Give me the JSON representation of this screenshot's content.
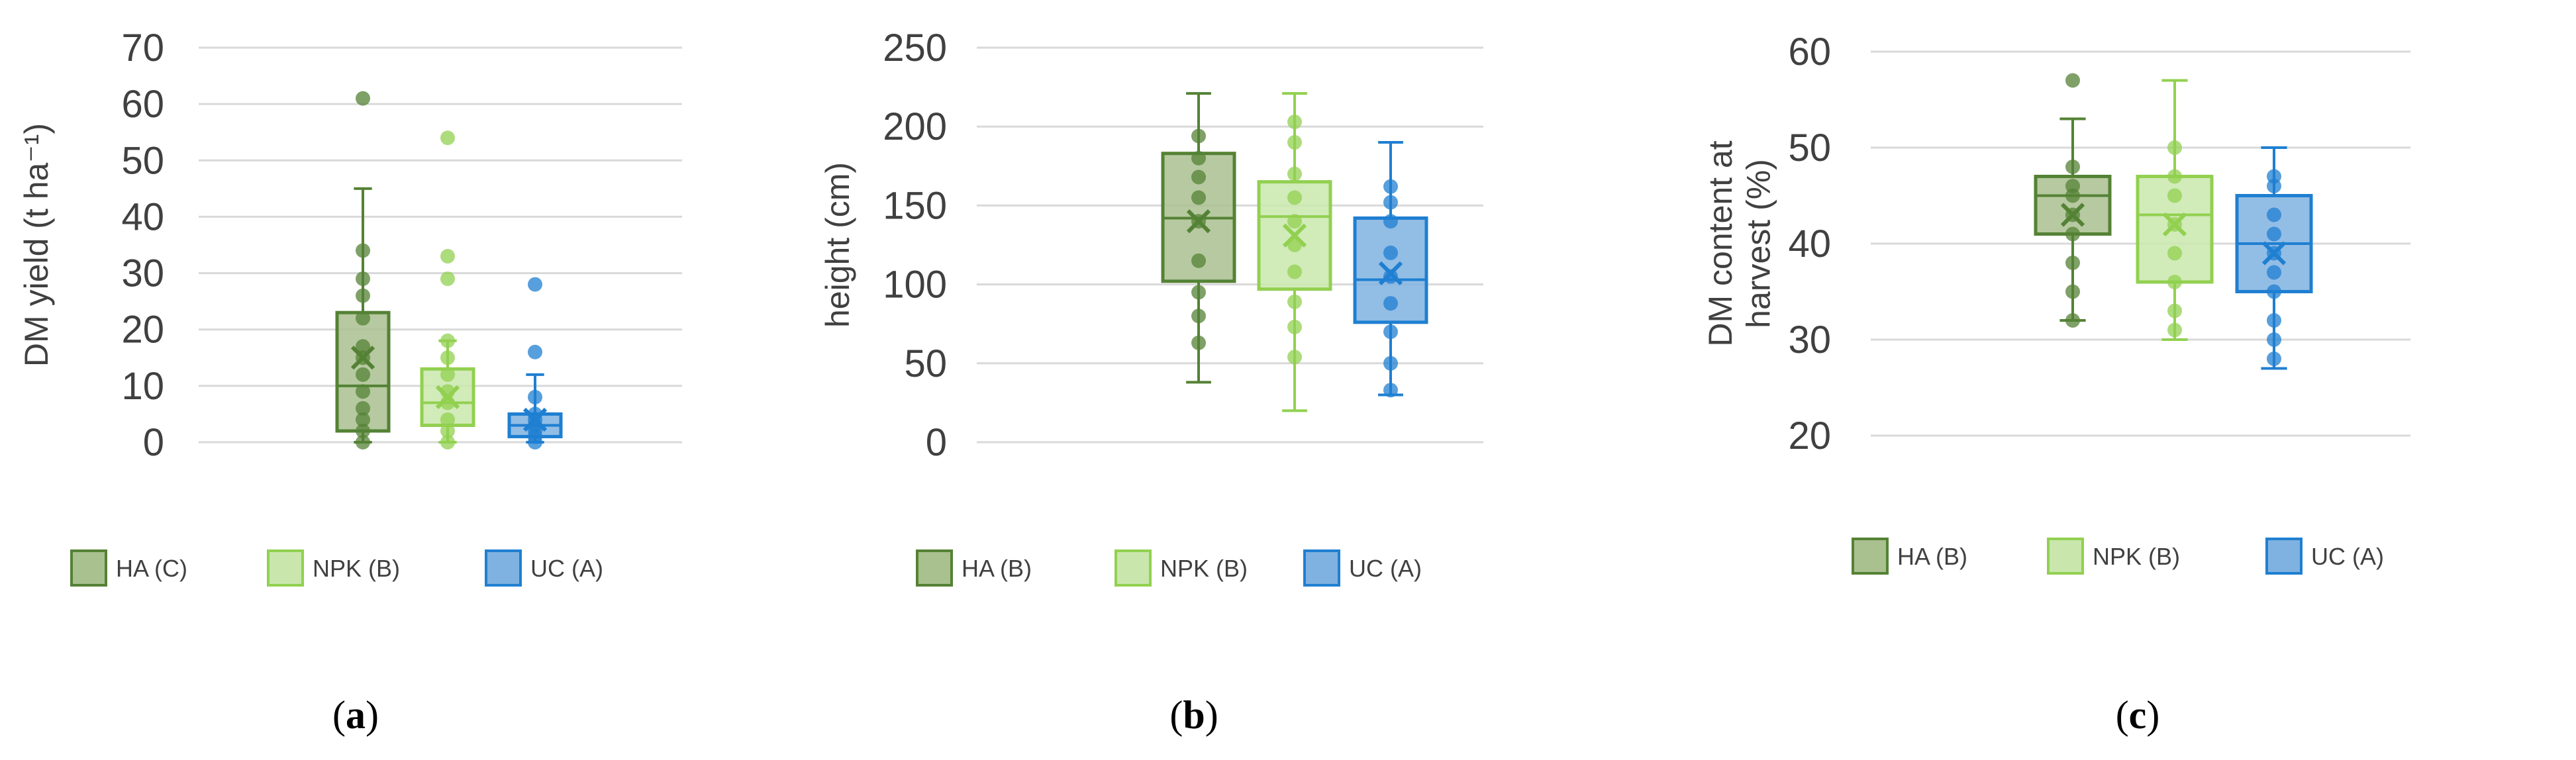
{
  "chart_data": [
    {
      "type": "box",
      "panel_label": "(a)",
      "panel_letter": "a",
      "ylabel": "DM yield (t ha⁻¹)",
      "ylim": [
        0,
        70
      ],
      "yticks": [
        "0",
        "10",
        "20",
        "30",
        "40",
        "50",
        "60",
        "70"
      ],
      "grid": true,
      "legend_position": "bottom",
      "series": [
        {
          "name": "HA (C)",
          "color": "#548235",
          "fill": "#a9c08f",
          "min": 0,
          "q1": 2,
          "median": 10,
          "q3": 23,
          "max": 45,
          "mean": 15,
          "points": [
            0,
            2,
            4,
            6,
            9,
            12,
            15,
            17,
            22,
            26,
            29,
            34,
            61
          ]
        },
        {
          "name": "NPK (B)",
          "color": "#92d050",
          "fill": "#c9e7ad",
          "min": 0,
          "q1": 3,
          "median": 7,
          "q3": 13,
          "max": 18,
          "mean": 8,
          "points": [
            0,
            2,
            4,
            7,
            9,
            12,
            15,
            18,
            29,
            33,
            54
          ]
        },
        {
          "name": "UC (A)",
          "color": "#1f7fd1",
          "fill": "#7fb2e0",
          "min": 0,
          "q1": 1,
          "median": 3,
          "q3": 5,
          "max": 12,
          "mean": 4,
          "points": [
            0,
            1,
            2,
            3,
            4,
            5,
            8,
            16,
            28
          ]
        }
      ]
    },
    {
      "type": "box",
      "panel_label": "(b)",
      "panel_letter": "b",
      "ylabel": "height (cm)",
      "ylim": [
        0,
        250
      ],
      "yticks": [
        "0",
        "50",
        "100",
        "150",
        "200",
        "250"
      ],
      "grid": true,
      "legend_position": "bottom",
      "series": [
        {
          "name": "HA (B)",
          "color": "#548235",
          "fill": "#a9c08f",
          "min": 38,
          "q1": 102,
          "median": 142,
          "q3": 183,
          "max": 221,
          "mean": 140,
          "points": [
            63,
            80,
            95,
            115,
            140,
            155,
            168,
            180,
            194
          ]
        },
        {
          "name": "NPK (B)",
          "color": "#92d050",
          "fill": "#c9e7ad",
          "min": 20,
          "q1": 97,
          "median": 143,
          "q3": 165,
          "max": 221,
          "mean": 131,
          "points": [
            54,
            73,
            89,
            108,
            125,
            140,
            155,
            170,
            190,
            203
          ]
        },
        {
          "name": "UC (A)",
          "color": "#1f7fd1",
          "fill": "#7fb2e0",
          "min": 30,
          "q1": 76,
          "median": 103,
          "q3": 142,
          "max": 190,
          "mean": 107,
          "points": [
            33,
            50,
            70,
            88,
            105,
            120,
            140,
            152,
            162
          ]
        }
      ]
    },
    {
      "type": "box",
      "panel_label": "(c)",
      "panel_letter": "c",
      "ylabel": "DM content at harvest (%)",
      "ylabel_lines": [
        "DM content at",
        "harvest (%)"
      ],
      "ylim": [
        20,
        60
      ],
      "yticks": [
        "20",
        "30",
        "40",
        "50",
        "60"
      ],
      "grid": true,
      "legend_position": "bottom",
      "series": [
        {
          "name": "HA (B)",
          "color": "#548235",
          "fill": "#a9c08f",
          "min": 32,
          "q1": 41,
          "median": 45,
          "q3": 47,
          "max": 53,
          "mean": 43,
          "points": [
            32,
            35,
            38,
            41,
            43,
            45,
            46,
            48,
            57
          ]
        },
        {
          "name": "NPK (B)",
          "color": "#92d050",
          "fill": "#c9e7ad",
          "min": 30,
          "q1": 36,
          "median": 43,
          "q3": 47,
          "max": 57,
          "mean": 42,
          "points": [
            31,
            33,
            36,
            39,
            42,
            45,
            47,
            50
          ]
        },
        {
          "name": "UC (A)",
          "color": "#1f7fd1",
          "fill": "#7fb2e0",
          "min": 27,
          "q1": 35,
          "median": 40,
          "q3": 45,
          "max": 50,
          "mean": 39,
          "points": [
            28,
            30,
            32,
            35,
            37,
            39,
            41,
            43,
            46,
            47
          ]
        }
      ]
    }
  ]
}
